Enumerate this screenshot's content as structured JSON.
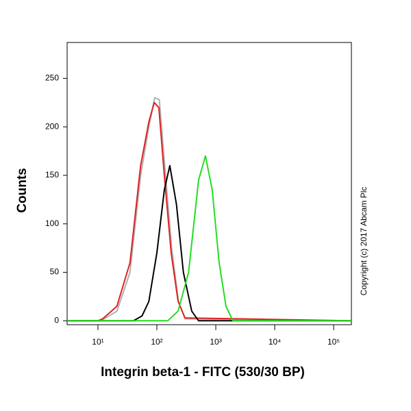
{
  "chart_data": {
    "type": "line",
    "xlabel": "Integrin beta-1 - FITC (530/30 BP)",
    "ylabel": "Counts",
    "annotation": "Copyright (c) 2017 Abcam Plc",
    "xscale": "log",
    "xlim": [
      3,
      200000
    ],
    "ylim": [
      -4,
      287
    ],
    "xticks": [
      {
        "value": 10,
        "label": "10¹"
      },
      {
        "value": 100,
        "label": "10²"
      },
      {
        "value": 1000,
        "label": "10³"
      },
      {
        "value": 10000,
        "label": "10⁴"
      },
      {
        "value": 100000,
        "label": "10⁵"
      }
    ],
    "yticks": [
      0,
      50,
      100,
      150,
      200,
      250
    ],
    "series": [
      {
        "color": "#b0b0b0",
        "x": [
          3,
          10,
          12,
          21,
          35,
          53,
          73,
          92,
          110,
          136,
          178,
          232,
          300,
          200000
        ],
        "values": [
          0,
          0,
          1,
          10,
          50,
          150,
          200,
          230,
          228,
          160,
          75,
          20,
          2,
          0
        ]
      },
      {
        "color": "#e02020",
        "x": [
          3,
          10,
          12,
          21,
          35,
          53,
          73,
          90,
          108,
          134,
          175,
          229,
          300,
          200000
        ],
        "values": [
          0,
          0,
          2,
          15,
          60,
          160,
          205,
          225,
          220,
          150,
          70,
          20,
          3,
          0
        ]
      },
      {
        "color": "#000000",
        "x": [
          3,
          40,
          56,
          73,
          100,
          134,
          166,
          215,
          282,
          390,
          510,
          200000
        ],
        "values": [
          0,
          0,
          5,
          20,
          70,
          135,
          160,
          120,
          50,
          10,
          0,
          0
        ]
      },
      {
        "color": "#22dd22",
        "x": [
          3,
          153,
          229,
          345,
          510,
          667,
          870,
          1140,
          1490,
          1950,
          200000
        ],
        "values": [
          0,
          0,
          10,
          50,
          145,
          170,
          135,
          60,
          15,
          0,
          0
        ]
      }
    ]
  }
}
